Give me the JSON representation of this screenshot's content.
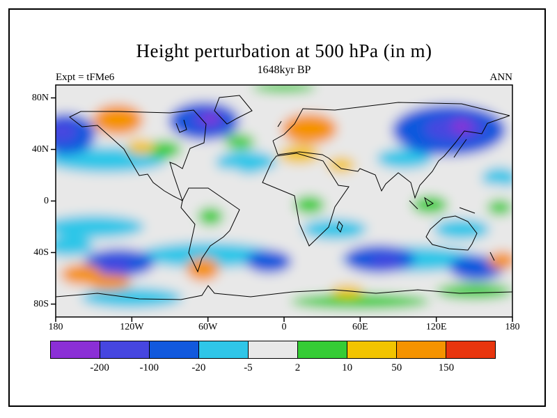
{
  "header": {
    "title": "Height perturbation at 500 hPa (in m)",
    "subtitle": "1648kyr BP",
    "experiment": "Expt = tFMe6",
    "season": "ANN"
  },
  "axes": {
    "lat_ticks": [
      {
        "label": "80N",
        "lat": 80
      },
      {
        "label": "40N",
        "lat": 40
      },
      {
        "label": "0",
        "lat": 0
      },
      {
        "label": "40S",
        "lat": -40
      },
      {
        "label": "80S",
        "lat": -80
      }
    ],
    "lon_ticks": [
      {
        "label": "180",
        "lon": -180
      },
      {
        "label": "120W",
        "lon": -120
      },
      {
        "label": "60W",
        "lon": -60
      },
      {
        "label": "0",
        "lon": 0
      },
      {
        "label": "60E",
        "lon": 60
      },
      {
        "label": "120E",
        "lon": 120
      },
      {
        "label": "180",
        "lon": 180
      }
    ]
  },
  "colorbar": {
    "labels": [
      "-200",
      "-100",
      "-20",
      "-5",
      "2",
      "10",
      "50",
      "150"
    ]
  },
  "chart_data": {
    "type": "heatmap",
    "subtype": "filled-contour-world-map",
    "title": "Height perturbation at 500 hPa (in m)",
    "time_label": "1648kyr BP",
    "experiment": "tFMe6",
    "season": "ANN",
    "units": "m",
    "projection": "equirectangular",
    "lon_range": [
      -180,
      180
    ],
    "lat_range": [
      -90,
      90
    ],
    "contour_levels": [
      -200,
      -100,
      -20,
      -5,
      2,
      10,
      50,
      150
    ],
    "palette": [
      "#8b2fd6",
      "#4646e0",
      "#1159dd",
      "#2fc6e8",
      "#e8e8e8",
      "#35cc35",
      "#f2c400",
      "#f59300",
      "#e8350e"
    ],
    "grid_lons": [
      -180,
      -150,
      -120,
      -90,
      -60,
      -30,
      0,
      30,
      60,
      90,
      120,
      150,
      180
    ],
    "grid_lats": [
      80,
      60,
      40,
      20,
      0,
      -20,
      -40,
      -60,
      -80
    ],
    "sampled_values": [
      [
        -60,
        60,
        80,
        -120,
        -150,
        -60,
        5,
        60,
        -120,
        -150,
        -150,
        -120,
        -60
      ],
      [
        -120,
        80,
        80,
        -60,
        -150,
        -30,
        60,
        80,
        -30,
        -120,
        -150,
        -130,
        -120
      ],
      [
        -60,
        -10,
        30,
        5,
        -10,
        -30,
        5,
        30,
        10,
        -10,
        -60,
        -120,
        -60
      ],
      [
        -10,
        0,
        -10,
        5,
        0,
        -10,
        0,
        5,
        0,
        -10,
        -10,
        0,
        -10
      ],
      [
        0,
        -10,
        0,
        5,
        5,
        0,
        5,
        5,
        0,
        5,
        5,
        0,
        0
      ],
      [
        -10,
        0,
        -10,
        0,
        5,
        -10,
        0,
        -10,
        -10,
        0,
        5,
        -10,
        -10
      ],
      [
        -60,
        -10,
        -60,
        -120,
        -30,
        80,
        -30,
        -60,
        -120,
        -60,
        -30,
        -10,
        80
      ],
      [
        80,
        80,
        -30,
        -10,
        80,
        30,
        -10,
        -60,
        -30,
        -60,
        -60,
        -10,
        5
      ],
      [
        -10,
        5,
        5,
        -10,
        5,
        5,
        30,
        30,
        5,
        -10,
        5,
        5,
        5
      ]
    ],
    "field_blobs": [
      [
        -140,
        32,
        48,
        10,
        -10
      ],
      [
        -30,
        30,
        24,
        9,
        -10
      ],
      [
        95,
        33,
        22,
        8,
        -10
      ],
      [
        -150,
        -20,
        40,
        9,
        -10
      ],
      [
        40,
        -22,
        26,
        8,
        -10
      ],
      [
        140,
        -22,
        22,
        8,
        -10
      ],
      [
        170,
        18,
        14,
        8,
        -10
      ],
      [
        -170,
        -35,
        20,
        8,
        -10
      ],
      [
        -60,
        -42,
        55,
        10,
        -10
      ],
      [
        100,
        -45,
        55,
        10,
        -10
      ],
      [
        -120,
        8,
        38,
        12,
        0
      ],
      [
        -25,
        0,
        22,
        10,
        0
      ],
      [
        5,
        18,
        28,
        9,
        0
      ],
      [
        95,
        12,
        16,
        9,
        0
      ],
      [
        165,
        3,
        18,
        10,
        0
      ],
      [
        -45,
        18,
        14,
        7,
        0
      ],
      [
        75,
        -28,
        15,
        7,
        0
      ],
      [
        -95,
        40,
        14,
        7,
        5
      ],
      [
        -35,
        46,
        12,
        6,
        5
      ],
      [
        20,
        -3,
        12,
        7,
        5
      ],
      [
        115,
        -3,
        14,
        7,
        5
      ],
      [
        -58,
        -12,
        10,
        7,
        5
      ],
      [
        170,
        -5,
        10,
        6,
        5
      ],
      [
        -172,
        52,
        24,
        16,
        -60
      ],
      [
        -63,
        62,
        28,
        15,
        -60
      ],
      [
        130,
        55,
        45,
        20,
        -60
      ],
      [
        -130,
        -48,
        28,
        11,
        -60
      ],
      [
        -12,
        -47,
        18,
        9,
        -60
      ],
      [
        75,
        -45,
        28,
        11,
        -60
      ],
      [
        152,
        -52,
        22,
        10,
        -60
      ],
      [
        -175,
        54,
        12,
        8,
        -130
      ],
      [
        -60,
        63,
        14,
        8,
        -130
      ],
      [
        135,
        56,
        24,
        10,
        -130
      ],
      [
        -133,
        -50,
        13,
        6,
        -130
      ],
      [
        80,
        -47,
        13,
        5,
        -130
      ],
      [
        -58,
        64,
        6,
        4,
        -220
      ],
      [
        140,
        58,
        8,
        5,
        -220
      ],
      [
        0,
        88,
        25,
        4,
        5
      ],
      [
        -120,
        -75,
        40,
        8,
        -10
      ],
      [
        60,
        -78,
        55,
        6,
        5
      ],
      [
        150,
        -70,
        30,
        6,
        5
      ],
      [
        -113,
        42,
        11,
        6,
        30
      ],
      [
        12,
        36,
        16,
        7,
        30
      ],
      [
        45,
        28,
        11,
        6,
        30
      ],
      [
        50,
        -70,
        13,
        5,
        30
      ],
      [
        -131,
        63,
        20,
        12,
        80
      ],
      [
        20,
        56,
        22,
        12,
        80
      ],
      [
        -64,
        -53,
        13,
        9,
        80
      ],
      [
        -160,
        -57,
        16,
        8,
        80
      ],
      [
        -138,
        -63,
        18,
        6,
        80
      ],
      [
        172,
        -46,
        11,
        7,
        80
      ]
    ]
  }
}
